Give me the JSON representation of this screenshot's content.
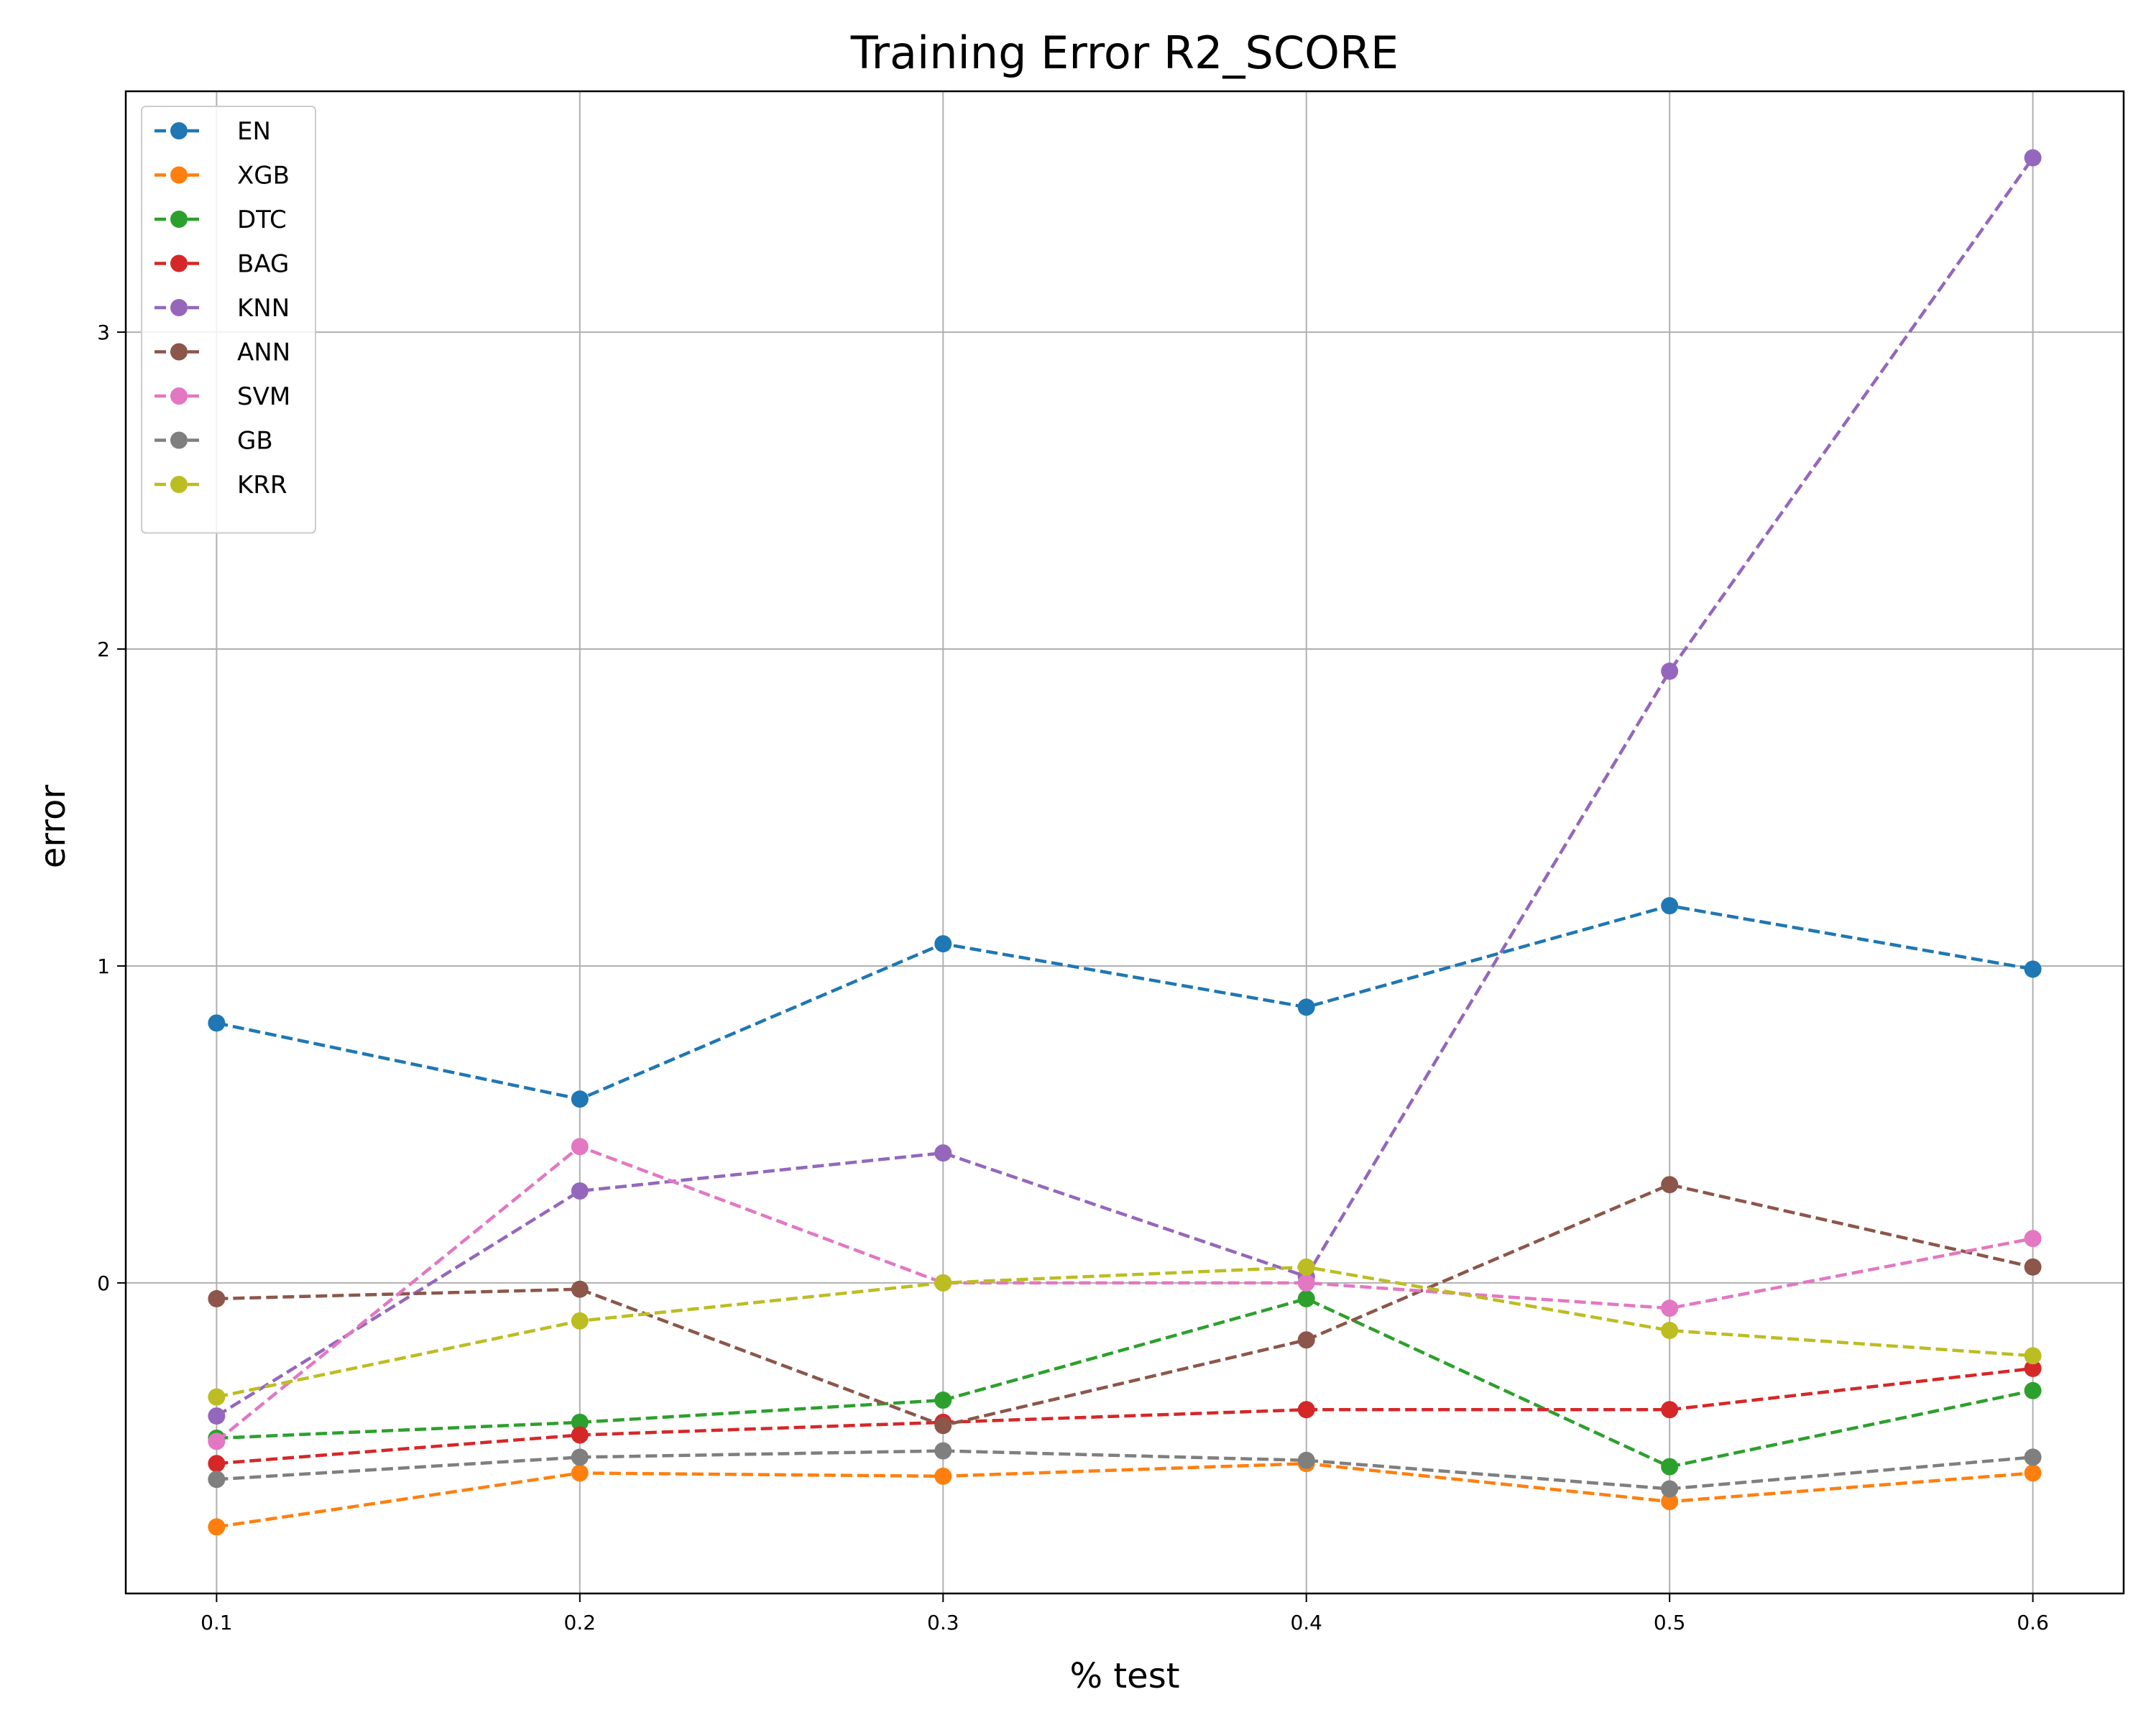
{
  "chart_data": {
    "type": "line",
    "title": "Training Error R2_SCORE",
    "xlabel": "% test",
    "ylabel": "error",
    "x": [
      0.1,
      0.2,
      0.3,
      0.4,
      0.5,
      0.6
    ],
    "x_ticks": [
      "0.1",
      "0.2",
      "0.3",
      "0.4",
      "0.5",
      "0.6"
    ],
    "y_ticks": [
      "0",
      "1",
      "2",
      "3"
    ],
    "xlim": [
      0.075,
      0.625
    ],
    "ylim": [
      -0.98,
      3.76
    ],
    "grid": true,
    "legend_position": "top-left",
    "series": [
      {
        "name": "EN",
        "color": "#1f77b4",
        "values": [
          0.82,
          0.58,
          1.07,
          0.87,
          1.19,
          0.99
        ]
      },
      {
        "name": "XGB",
        "color": "#ff7f0e",
        "values": [
          -0.77,
          -0.6,
          -0.61,
          -0.57,
          -0.69,
          -0.6
        ]
      },
      {
        "name": "DTC",
        "color": "#2ca02c",
        "values": [
          -0.49,
          -0.44,
          -0.37,
          -0.05,
          -0.58,
          -0.34
        ]
      },
      {
        "name": "BAG",
        "color": "#d62728",
        "values": [
          -0.57,
          -0.48,
          -0.44,
          -0.4,
          -0.4,
          -0.27
        ]
      },
      {
        "name": "KNN",
        "color": "#9467bd",
        "values": [
          -0.42,
          0.29,
          0.41,
          0.02,
          1.93,
          3.55
        ]
      },
      {
        "name": "ANN",
        "color": "#8c564b",
        "values": [
          -0.05,
          -0.02,
          -0.45,
          -0.18,
          0.31,
          0.05
        ]
      },
      {
        "name": "SVM",
        "color": "#e377c2",
        "values": [
          -0.5,
          0.43,
          0.0,
          0.0,
          -0.08,
          0.14
        ]
      },
      {
        "name": "GB",
        "color": "#7f7f7f",
        "values": [
          -0.62,
          -0.55,
          -0.53,
          -0.56,
          -0.65,
          -0.55
        ]
      },
      {
        "name": "KRR",
        "color": "#bcbd22",
        "values": [
          -0.36,
          -0.12,
          0.0,
          0.05,
          -0.15,
          -0.23
        ]
      }
    ]
  }
}
